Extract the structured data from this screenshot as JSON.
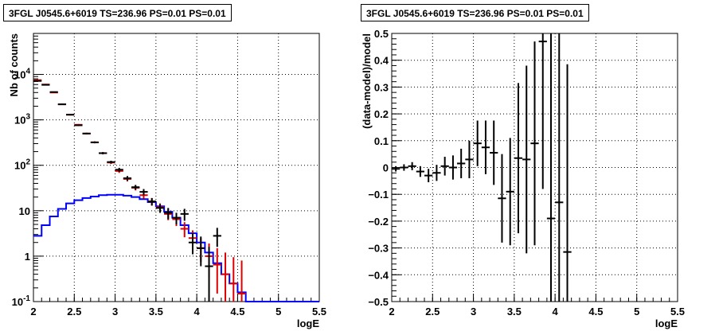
{
  "chart_data": [
    {
      "type": "line",
      "title": "3FGL J0545.6+6019 TS=236.96 PS=0.01 PS=0.01",
      "xlabel": "logE",
      "ylabel": "Nb of counts",
      "xlim": [
        2,
        5.5
      ],
      "ylim": [
        0.1,
        80000
      ],
      "yscale": "log",
      "grid": true,
      "x_ticks": [
        "2",
        "2.5",
        "3",
        "3.5",
        "4",
        "4.5",
        "5",
        "5.5"
      ],
      "y_ticks": [
        {
          "value": 0.1,
          "base": "10",
          "exp": "-1"
        },
        {
          "value": 1,
          "label": "1"
        },
        {
          "value": 10,
          "label": "10"
        },
        {
          "value": 100,
          "base": "10",
          "exp": "2"
        },
        {
          "value": 1000,
          "base": "10",
          "exp": "3"
        },
        {
          "value": 10000,
          "base": "10",
          "exp": "4"
        }
      ],
      "series": [
        {
          "kind": "step",
          "color": "#0000ff",
          "x": [
            2.0,
            2.1,
            2.2,
            2.3,
            2.4,
            2.5,
            2.6,
            2.7,
            2.8,
            2.9,
            3.0,
            3.1,
            3.2,
            3.3,
            3.4,
            3.5,
            3.6,
            3.7,
            3.8,
            3.9,
            4.0,
            4.1,
            4.2,
            4.3,
            4.4,
            4.5,
            4.6,
            4.7,
            4.8,
            4.9,
            5.0,
            5.1,
            5.2,
            5.3,
            5.4
          ],
          "values": [
            2.8,
            4.8,
            7.5,
            11,
            14.5,
            17,
            19,
            20.5,
            22,
            22.5,
            22.5,
            21.5,
            20,
            18,
            15.5,
            12.5,
            9.5,
            7,
            4.8,
            3.2,
            2,
            1.2,
            0.7,
            0.4,
            0.25,
            0.16,
            0.1,
            0.1,
            0.1,
            0.1,
            0.1,
            0.1,
            0.1,
            0.1,
            0.1
          ]
        },
        {
          "kind": "errorbar",
          "color": "#dd0000",
          "x": [
            2.05,
            2.15,
            2.25,
            2.35,
            2.45,
            2.55,
            2.65,
            2.75,
            2.85,
            2.95,
            3.05,
            3.15,
            3.25,
            3.35,
            3.45,
            3.55,
            3.65,
            3.75,
            3.85,
            3.95,
            4.05,
            4.15,
            4.25,
            4.35,
            4.45,
            4.55
          ],
          "values": [
            7500,
            6000,
            4000,
            2200,
            1300,
            780,
            500,
            320,
            185,
            115,
            75,
            50,
            32,
            22,
            16,
            12,
            8.5,
            6.5,
            4,
            2.5,
            1.5,
            1,
            0.65,
            0.4,
            0.25,
            0.15
          ],
          "err_lo": [
            7200,
            5800,
            3880,
            2130,
            1260,
            750,
            480,
            305,
            175,
            107,
            68,
            44,
            28,
            18.5,
            13,
            9.5,
            6.2,
            4.6,
            2.6,
            1.5,
            0.75,
            0.35,
            0.15,
            0.05,
            0.02,
            0.01
          ],
          "err_hi": [
            7800,
            6200,
            4120,
            2270,
            1340,
            810,
            520,
            335,
            195,
            123,
            82,
            56,
            36,
            25.5,
            19,
            14.5,
            11,
            8.5,
            5.6,
            3.7,
            2.5,
            1.9,
            1.5,
            1.2,
            0.95,
            0.8
          ]
        },
        {
          "kind": "errorbar",
          "color": "#000000",
          "x": [
            2.05,
            2.15,
            2.25,
            2.35,
            2.45,
            2.55,
            2.65,
            2.75,
            2.85,
            2.95,
            3.05,
            3.15,
            3.25,
            3.35,
            3.45,
            3.55,
            3.65,
            3.75,
            3.85,
            3.95,
            4.05,
            4.15,
            4.25
          ],
          "values": [
            7200,
            5900,
            4100,
            2200,
            1300,
            760,
            500,
            320,
            185,
            118,
            80,
            52,
            33,
            26,
            16,
            11.5,
            9,
            7,
            8.5,
            2,
            1.5,
            0.6,
            2.8
          ],
          "err_lo": [
            7000,
            5750,
            3980,
            2130,
            1250,
            730,
            480,
            305,
            175,
            110,
            72,
            46,
            29,
            22,
            13,
            9,
            6.5,
            5,
            6,
            1.1,
            0.6,
            0.1,
            1.6
          ],
          "err_hi": [
            7400,
            6050,
            4220,
            2270,
            1350,
            790,
            520,
            335,
            195,
            126,
            88,
            58,
            37,
            30,
            19,
            14,
            11.5,
            9,
            11,
            3.2,
            2.7,
            1.6,
            4.2
          ]
        }
      ]
    },
    {
      "type": "scatter",
      "title": "3FGL J0545.6+6019 TS=236.96 PS=0.01 PS=0.01",
      "xlabel": "logE",
      "ylabel": "(data-model)/model",
      "xlim": [
        2,
        5.5
      ],
      "ylim": [
        -0.5,
        0.5
      ],
      "grid": true,
      "x_ticks": [
        "2",
        "2.5",
        "3",
        "3.5",
        "4",
        "4.5",
        "5",
        "5.5"
      ],
      "y_ticks": [
        "−0.5",
        "−0.4",
        "−0.3",
        "−0.2",
        "−0.1",
        "0",
        "0.1",
        "0.2",
        "0.3",
        "0.4",
        "0.5"
      ],
      "series": [
        {
          "kind": "errorbar",
          "color": "#000000",
          "x": [
            2.05,
            2.15,
            2.25,
            2.35,
            2.45,
            2.55,
            2.65,
            2.75,
            2.85,
            2.95,
            3.05,
            3.15,
            3.25,
            3.35,
            3.45,
            3.55,
            3.65,
            3.75,
            3.85,
            3.95,
            4.05,
            4.15
          ],
          "values": [
            -0.005,
            0.0,
            0.005,
            -0.015,
            -0.03,
            -0.02,
            0.005,
            0.0,
            0.015,
            0.03,
            0.09,
            0.075,
            0.055,
            -0.115,
            -0.09,
            0.035,
            0.03,
            0.09,
            0.47,
            -0.19,
            -0.13,
            -0.315
          ],
          "err": [
            0.01,
            0.012,
            0.015,
            0.02,
            0.025,
            0.03,
            0.035,
            0.045,
            0.055,
            0.07,
            0.085,
            0.1,
            0.12,
            0.165,
            0.2,
            0.28,
            0.35,
            0.38,
            0.55,
            0.8,
            0.66,
            0.7
          ]
        }
      ]
    }
  ]
}
